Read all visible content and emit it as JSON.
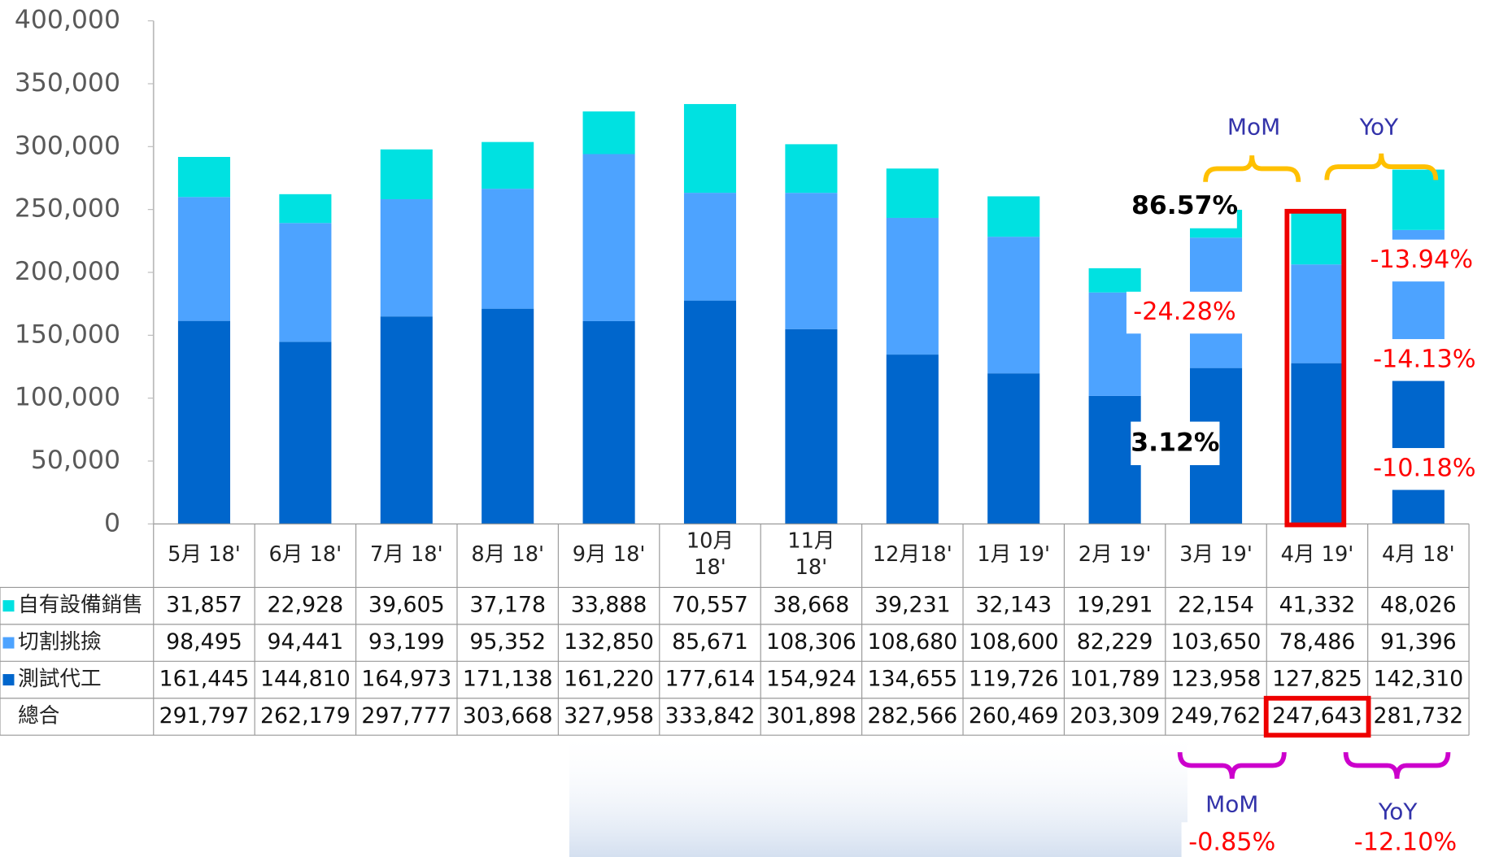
{
  "chart_data": {
    "type": "stacked_bar",
    "categories": [
      "5月 18'",
      "6月 18'",
      "7月 18'",
      "8月 18'",
      "9月 18'",
      "10月\n18'",
      "11月\n18'",
      "12月18'",
      "1月 19'",
      "2月 19'",
      "3月 19'",
      "4月 19'",
      "4月 18'"
    ],
    "series": [
      {
        "name": "測試代工",
        "color": "#0066cc",
        "values": [
          161445,
          144810,
          164973,
          171138,
          161220,
          177614,
          154924,
          134655,
          119726,
          101789,
          123958,
          127825,
          142310
        ],
        "value_labels": [
          "161,445",
          "144,810",
          "164,973",
          "171,138",
          "161,220",
          "177,614",
          "154,924",
          "134,655",
          "119,726",
          "101,789",
          "123,958",
          "127,825",
          "142,310"
        ]
      },
      {
        "name": "切割挑撿",
        "color": "#4da3ff",
        "values": [
          98495,
          94441,
          93199,
          95352,
          132850,
          85671,
          108306,
          108680,
          108600,
          82229,
          103650,
          78486,
          91396
        ],
        "value_labels": [
          "98,495",
          "94,441",
          "93,199",
          "95,352",
          "132,850",
          "85,671",
          "108,306",
          "108,680",
          "108,600",
          "82,229",
          "103,650",
          "78,486",
          "91,396"
        ]
      },
      {
        "name": "自有設備銷售",
        "color": "#00e1e1",
        "values": [
          31857,
          22928,
          39605,
          37178,
          33888,
          70557,
          38668,
          39231,
          32143,
          19291,
          22154,
          41332,
          48026
        ],
        "value_labels": [
          "31,857",
          "22,928",
          "39,605",
          "37,178",
          "33,888",
          "70,557",
          "38,668",
          "39,231",
          "32,143",
          "19,291",
          "22,154",
          "41,332",
          "48,026"
        ]
      }
    ],
    "total_row": {
      "label": "總合",
      "values": [
        "291,797",
        "262,179",
        "297,777",
        "303,668",
        "327,958",
        "333,842",
        "301,898",
        "282,566",
        "260,469",
        "203,309",
        "249,762",
        "247,643",
        "281,732"
      ]
    },
    "ylim": [
      0,
      400000
    ],
    "yticks": [
      0,
      {
        "value": 50000,
        "label": "50,000"
      },
      {
        "value": 100000,
        "label": "100,000"
      },
      {
        "value": 150000,
        "label": "150,000"
      },
      {
        "value": 200000,
        "label": "200,000"
      },
      {
        "value": 250000,
        "label": "250,000"
      },
      {
        "value": 300000,
        "label": "300,000"
      },
      {
        "value": 350000,
        "label": "350,000"
      },
      {
        "value": 400000,
        "label": "400,000"
      }
    ],
    "annotations": [
      "MoM",
      "YoY",
      "86.57%",
      "3.12%",
      "-24.28%",
      "-13.94%",
      "-14.13%",
      "-10.18%",
      "MoM",
      "-0.85%",
      "YoY",
      "-12.10%"
    ]
  }
}
